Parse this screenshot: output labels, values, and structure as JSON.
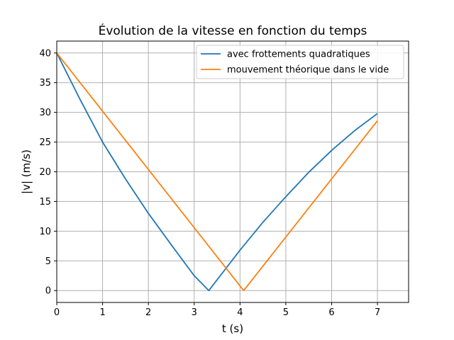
{
  "chart_data": {
    "type": "line",
    "title": "Évolution de la vitesse en fonction du temps",
    "xlabel": "t (s)",
    "ylabel": "|v| (m/s)",
    "xlim": [
      0,
      7.68
    ],
    "ylim": [
      -2,
      42
    ],
    "xticks": [
      0,
      1,
      2,
      3,
      4,
      5,
      6,
      7
    ],
    "yticks": [
      0,
      5,
      10,
      15,
      20,
      25,
      30,
      35,
      40
    ],
    "grid": true,
    "legend_position": "top-right",
    "series": [
      {
        "name": "avec frottements quadratiques",
        "color": "#1f77b4",
        "x": [
          0,
          0.5,
          1.0,
          1.5,
          2.0,
          2.5,
          3.0,
          3.32,
          3.5,
          4.0,
          4.5,
          5.0,
          5.5,
          6.0,
          6.5,
          7.0
        ],
        "y": [
          40,
          32.3,
          25.0,
          18.8,
          13.0,
          7.7,
          2.5,
          0,
          1.8,
          6.8,
          11.5,
          15.8,
          19.9,
          23.6,
          26.9,
          29.8
        ]
      },
      {
        "name": "mouvement théorique dans le vide",
        "color": "#ff7f0e",
        "x": [
          0,
          4.08,
          7.0
        ],
        "y": [
          40,
          0,
          28.6
        ]
      }
    ]
  }
}
